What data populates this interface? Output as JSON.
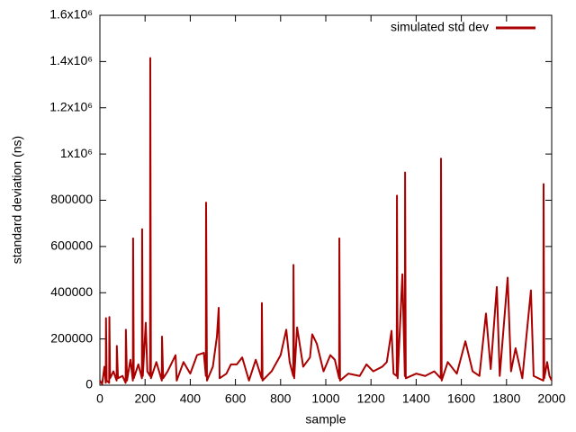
{
  "chart_data": {
    "type": "line",
    "xlabel": "sample",
    "ylabel": "standard deviation (ns)",
    "xlim": [
      0,
      2000
    ],
    "xticks": [
      0,
      200,
      400,
      600,
      800,
      1000,
      1200,
      1400,
      1600,
      1800,
      2000
    ],
    "ylim": [
      0,
      1600000
    ],
    "yticks": [
      0,
      200000,
      400000,
      600000,
      800000,
      {
        "value": 1000000,
        "label": "1x10⁶"
      },
      {
        "value": 1200000,
        "label": "1.2x10⁶"
      },
      {
        "value": 1400000,
        "label": "1.4x10⁶"
      },
      {
        "value": 1600000,
        "label": "1.6x10⁶"
      }
    ],
    "legend": "upper right",
    "x": [
      0,
      10,
      20,
      26,
      27,
      30,
      41,
      42,
      45,
      60,
      74,
      75,
      80,
      100,
      114,
      115,
      120,
      135,
      146,
      147,
      150,
      170,
      186,
      187,
      190,
      203,
      210,
      222,
      223,
      226,
      250,
      274,
      275,
      280,
      300,
      335,
      340,
      370,
      400,
      430,
      460,
      469,
      470,
      474,
      500,
      518,
      526,
      530,
      560,
      580,
      606,
      630,
      660,
      690,
      716,
      717,
      720,
      760,
      800,
      825,
      840,
      856,
      857,
      860,
      873,
      900,
      930,
      940,
      960,
      990,
      1020,
      1040,
      1059,
      1060,
      1063,
      1100,
      1150,
      1180,
      1210,
      1250,
      1270,
      1291,
      1300,
      1314,
      1315,
      1318,
      1339,
      1350,
      1351,
      1354,
      1400,
      1440,
      1480,
      1509,
      1510,
      1513,
      1540,
      1580,
      1618,
      1650,
      1680,
      1709,
      1730,
      1757,
      1770,
      1805,
      1820,
      1840,
      1870,
      1908,
      1920,
      1963,
      1964,
      1967,
      1980,
      1990,
      2000
    ],
    "series": [
      {
        "name": "simulated std dev",
        "color": "#aa0000",
        "values": [
          20000,
          5000,
          80000,
          10000,
          290000,
          20000,
          10000,
          295000,
          30000,
          60000,
          20000,
          170000,
          30000,
          40000,
          10000,
          240000,
          20000,
          110000,
          20000,
          635000,
          30000,
          90000,
          30000,
          675000,
          40000,
          270000,
          60000,
          40000,
          1415000,
          30000,
          100000,
          20000,
          210000,
          30000,
          60000,
          130000,
          20000,
          100000,
          50000,
          130000,
          140000,
          40000,
          790000,
          20000,
          80000,
          210000,
          335000,
          30000,
          50000,
          90000,
          90000,
          120000,
          20000,
          110000,
          30000,
          355000,
          20000,
          60000,
          130000,
          240000,
          100000,
          40000,
          520000,
          30000,
          250000,
          80000,
          120000,
          220000,
          180000,
          60000,
          130000,
          110000,
          30000,
          635000,
          20000,
          50000,
          40000,
          90000,
          60000,
          80000,
          100000,
          235000,
          50000,
          40000,
          820000,
          30000,
          480000,
          40000,
          920000,
          30000,
          50000,
          40000,
          60000,
          30000,
          980000,
          20000,
          100000,
          50000,
          190000,
          60000,
          40000,
          310000,
          70000,
          425000,
          40000,
          465000,
          60000,
          160000,
          30000,
          410000,
          40000,
          20000,
          870000,
          30000,
          100000,
          40000,
          20000
        ]
      }
    ]
  }
}
